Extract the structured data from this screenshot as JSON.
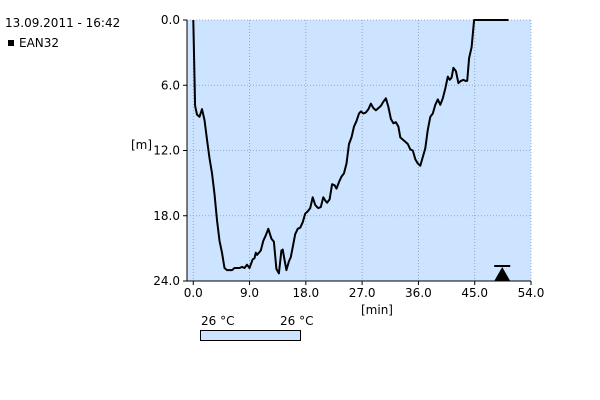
{
  "header": {
    "timestamp": "13.09.2011 - 16:42",
    "legend_label": "EAN32"
  },
  "colorbar": {
    "min_label": "26 °C",
    "max_label": "26 °C",
    "color": "#cce4ff"
  },
  "chart_data": {
    "type": "line",
    "title": "",
    "xlabel": "[min]",
    "ylabel": "[m]",
    "xlim": [
      -1,
      54
    ],
    "ylim": [
      24,
      0
    ],
    "y_inverted": true,
    "grid": true,
    "background": "#cce4ff",
    "line_color": "#000000",
    "xticks": [
      "0.0",
      "9.0",
      "18.0",
      "27.0",
      "36.0",
      "45.0",
      "54.0"
    ],
    "yticks": [
      "0.0",
      "6.0",
      "12.0",
      "18.0",
      "24.0"
    ],
    "series": [
      {
        "name": "EAN32",
        "x": [
          0,
          0.3,
          0.6,
          1.0,
          1.4,
          1.8,
          2.2,
          2.6,
          3.0,
          3.4,
          3.8,
          4.2,
          4.6,
          5.0,
          5.4,
          5.8,
          6.2,
          6.6,
          7.0,
          7.4,
          7.8,
          8.2,
          8.6,
          9.0,
          9.5,
          9.8,
          10.0,
          10.2,
          10.8,
          11.2,
          11.6,
          12.0,
          12.5,
          12.9,
          13.3,
          13.7,
          14.1,
          14.3,
          14.6,
          14.9,
          15.3,
          15.6,
          15.9,
          16.3,
          16.7,
          17.1,
          17.5,
          17.9,
          18.3,
          18.7,
          19.1,
          19.5,
          19.8,
          20.0,
          20.4,
          20.8,
          21.1,
          21.4,
          21.8,
          22.2,
          22.6,
          22.9,
          23.3,
          23.7,
          24.1,
          24.5,
          24.9,
          25.3,
          25.7,
          26.1,
          26.5,
          26.8,
          27.2,
          27.6,
          28.0,
          28.4,
          28.8,
          29.2,
          29.6,
          30.0,
          30.4,
          30.8,
          31.2,
          31.6,
          32.0,
          32.4,
          32.8,
          33.1,
          33.5,
          33.9,
          34.3,
          34.7,
          35.1,
          35.5,
          35.9,
          36.3,
          36.7,
          37.1,
          37.5,
          37.9,
          38.3,
          38.7,
          39.1,
          39.5,
          39.9,
          40.3,
          40.7,
          41.0,
          41.3,
          41.6,
          42.0,
          42.4,
          42.8,
          43.2,
          43.5,
          43.8,
          44.1,
          44.5,
          44.9,
          45.3,
          45.7,
          46.1,
          46.5,
          46.9,
          47.3,
          47.7,
          48.1,
          48.5,
          48.9,
          49.3,
          49.6,
          50.0,
          50.4
        ],
        "y": [
          0.0,
          7.9,
          8.7,
          8.9,
          8.2,
          9.2,
          11.0,
          12.7,
          14.1,
          16.0,
          18.4,
          20.3,
          21.4,
          22.8,
          23.0,
          23.0,
          23.0,
          22.8,
          22.8,
          22.8,
          22.7,
          22.8,
          22.5,
          22.8,
          22.0,
          21.9,
          21.4,
          21.6,
          21.2,
          20.3,
          19.8,
          19.2,
          20.1,
          20.4,
          22.9,
          23.3,
          21.2,
          21.1,
          22.1,
          23.0,
          22.2,
          21.8,
          20.9,
          19.7,
          19.2,
          19.1,
          18.6,
          17.8,
          17.6,
          17.3,
          16.3,
          17.0,
          17.2,
          17.3,
          17.2,
          16.3,
          16.6,
          16.8,
          16.5,
          15.1,
          15.2,
          15.5,
          14.9,
          14.4,
          14.1,
          13.2,
          11.4,
          10.8,
          9.8,
          9.3,
          8.6,
          8.4,
          8.6,
          8.5,
          8.2,
          7.7,
          8.1,
          8.3,
          8.1,
          7.9,
          7.5,
          7.2,
          8.0,
          9.1,
          9.5,
          9.4,
          9.8,
          10.8,
          11.0,
          11.2,
          11.4,
          11.9,
          12.0,
          12.8,
          13.2,
          13.4,
          12.6,
          11.8,
          10.1,
          8.9,
          8.6,
          7.8,
          7.3,
          7.8,
          7.2,
          6.3,
          5.2,
          5.5,
          5.3,
          4.4,
          4.7,
          5.8,
          5.6,
          5.5,
          5.6,
          5.6,
          3.5,
          2.5,
          0.0,
          0.0,
          0.0,
          0.0,
          0.0,
          0.0,
          0.0,
          0.0,
          0.0,
          0.0,
          0.0,
          0.0,
          0.0,
          0.0,
          0.0
        ]
      }
    ],
    "marker": {
      "shape": "triangle-up",
      "x": 49.4,
      "y": 24.0,
      "color": "#000000"
    }
  }
}
